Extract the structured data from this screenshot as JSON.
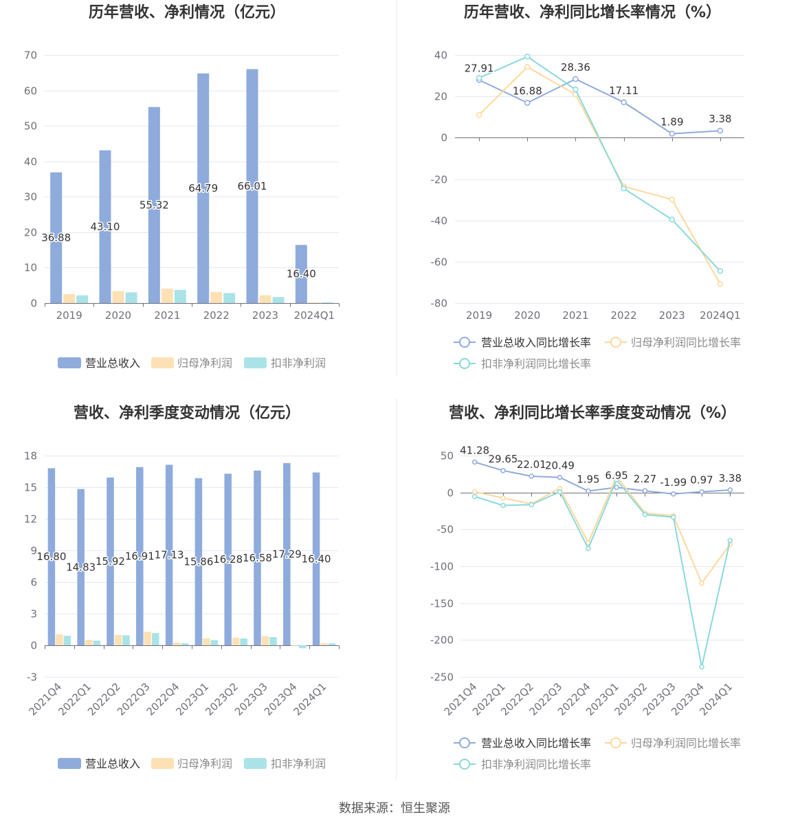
{
  "footer": {
    "source": "数据来源：恒生聚源"
  },
  "chart_data": [
    {
      "type": "bar",
      "title": "历年营收、净利情况（亿元）",
      "categories": [
        "2019",
        "2020",
        "2021",
        "2022",
        "2023",
        "2024Q1"
      ],
      "series": [
        {
          "name": "营业总收入",
          "color": "#8eabdc",
          "values": [
            36.88,
            43.1,
            55.32,
            64.79,
            66.01,
            16.4
          ],
          "labels": [
            "36.88",
            "43.10",
            "55.32",
            "64.79",
            "66.01",
            "16.40"
          ]
        },
        {
          "name": "归母净利润",
          "color": "#fde1b4",
          "values": [
            2.52,
            3.37,
            4.08,
            3.12,
            2.19,
            0.19
          ]
        },
        {
          "name": "扣非净利润",
          "color": "#aae3e7",
          "values": [
            2.17,
            3.02,
            3.72,
            2.81,
            1.7,
            0.18
          ]
        }
      ],
      "ylim": [
        0,
        70
      ],
      "yticks": [
        70,
        60,
        50,
        40,
        30,
        20,
        10,
        0
      ],
      "legend_position": "bottom"
    },
    {
      "type": "line",
      "title": "历年营收、净利同比增长率情况（%）",
      "categories": [
        "2019",
        "2020",
        "2021",
        "2022",
        "2023",
        "2024Q1"
      ],
      "series": [
        {
          "name": "营业总收入同比增长率",
          "color": "#8eabdc",
          "values": [
            27.91,
            16.88,
            28.36,
            17.11,
            1.89,
            3.38
          ],
          "labels": [
            "27.91",
            "16.88",
            "28.36",
            "17.11",
            "1.89",
            "3.38"
          ]
        },
        {
          "name": "归母净利润同比增长率",
          "color": "#fdd89c",
          "values": [
            11.0,
            34.2,
            20.9,
            -23.6,
            -29.9,
            -70.8
          ]
        },
        {
          "name": "扣非净利润同比增长率",
          "color": "#89d8dc",
          "values": [
            28.9,
            39.2,
            23.3,
            -24.6,
            -39.6,
            -64.5
          ]
        }
      ],
      "ylim": [
        -80,
        40
      ],
      "yticks": [
        40,
        20,
        0,
        -20,
        -40,
        -60,
        -80
      ],
      "legend_position": "bottom"
    },
    {
      "type": "bar",
      "title": "营收、净利季度变动情况（亿元）",
      "categories": [
        "2021Q4",
        "2022Q1",
        "2022Q2",
        "2022Q3",
        "2022Q4",
        "2023Q1",
        "2023Q2",
        "2023Q3",
        "2023Q4",
        "2024Q1"
      ],
      "series": [
        {
          "name": "营业总收入",
          "color": "#8eabdc",
          "values": [
            16.8,
            14.83,
            15.92,
            16.91,
            17.13,
            15.86,
            16.28,
            16.58,
            17.29,
            16.4
          ],
          "labels": [
            "16.80",
            "14.83",
            "15.92",
            "16.91",
            "17.13",
            "15.86",
            "16.28",
            "16.58",
            "17.29",
            "16.40"
          ]
        },
        {
          "name": "归母净利润",
          "color": "#fde1b4",
          "values": [
            1.04,
            0.52,
            0.98,
            1.28,
            0.26,
            0.65,
            0.72,
            0.86,
            -0.05,
            0.19
          ]
        },
        {
          "name": "扣非净利润",
          "color": "#aae3e7",
          "values": [
            0.9,
            0.44,
            0.95,
            1.16,
            0.2,
            0.5,
            0.65,
            0.78,
            -0.28,
            0.18
          ]
        }
      ],
      "ylim": [
        -3,
        18
      ],
      "yticks": [
        18,
        15,
        12,
        9,
        6,
        3,
        0,
        -3
      ],
      "legend_position": "bottom"
    },
    {
      "type": "line",
      "title": "营收、净利同比增长率季度变动情况（%）",
      "categories": [
        "2021Q4",
        "2022Q1",
        "2022Q2",
        "2022Q3",
        "2022Q4",
        "2023Q1",
        "2023Q2",
        "2023Q3",
        "2023Q4",
        "2024Q1"
      ],
      "series": [
        {
          "name": "营业总收入同比增长率",
          "color": "#8eabdc",
          "values": [
            41.28,
            29.65,
            22.01,
            20.49,
            1.95,
            6.95,
            2.27,
            -1.99,
            0.97,
            3.38
          ],
          "labels": [
            "41.28",
            "29.65",
            "22.01",
            "20.49",
            "1.95",
            "6.95",
            "2.27",
            "-1.99",
            "0.97",
            "3.38"
          ]
        },
        {
          "name": "归母净利润同比增长率",
          "color": "#fdd89c",
          "values": [
            1.0,
            -7.5,
            -15.5,
            5.5,
            -68.0,
            22.0,
            -28.0,
            -31.5,
            -123.0,
            -70.0
          ]
        },
        {
          "name": "扣非净利润同比增长率",
          "color": "#89d8dc",
          "values": [
            -5.5,
            -17.5,
            -16.5,
            1.0,
            -76.0,
            17.0,
            -30.0,
            -33.5,
            -236.5,
            -65.0
          ]
        }
      ],
      "ylim": [
        -250,
        50
      ],
      "yticks": [
        50,
        0,
        -50,
        -100,
        -150,
        -200,
        -250
      ],
      "legend_position": "bottom"
    }
  ]
}
